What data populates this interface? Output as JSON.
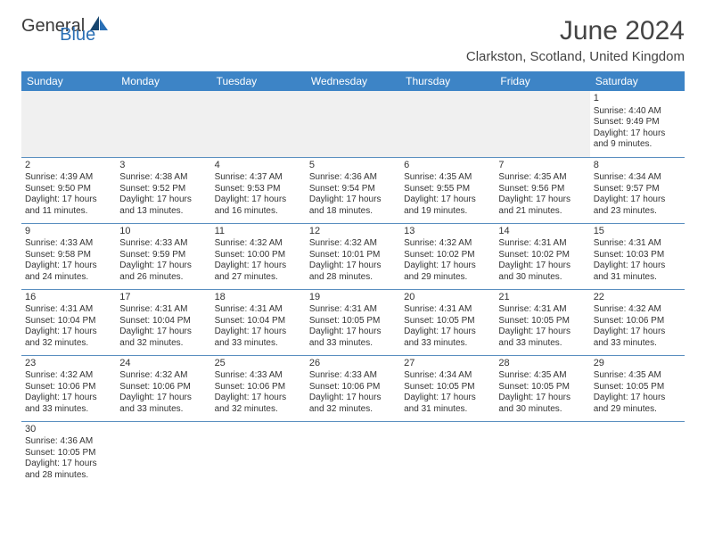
{
  "logo": {
    "text_main": "General",
    "text_sub": "Blue"
  },
  "header": {
    "title": "June 2024",
    "location": "Clarkston, Scotland, United Kingdom"
  },
  "colors": {
    "header_bg": "#3d84c6",
    "header_text": "#ffffff",
    "cell_border": "#5a8fc0",
    "empty_bg": "#f0f0f0",
    "text": "#333333",
    "logo_blue": "#2a6fb5"
  },
  "calendar": {
    "day_names": [
      "Sunday",
      "Monday",
      "Tuesday",
      "Wednesday",
      "Thursday",
      "Friday",
      "Saturday"
    ],
    "weeks": [
      [
        null,
        null,
        null,
        null,
        null,
        null,
        {
          "n": "1",
          "sr": "Sunrise: 4:40 AM",
          "ss": "Sunset: 9:49 PM",
          "d1": "Daylight: 17 hours",
          "d2": "and 9 minutes."
        }
      ],
      [
        {
          "n": "2",
          "sr": "Sunrise: 4:39 AM",
          "ss": "Sunset: 9:50 PM",
          "d1": "Daylight: 17 hours",
          "d2": "and 11 minutes."
        },
        {
          "n": "3",
          "sr": "Sunrise: 4:38 AM",
          "ss": "Sunset: 9:52 PM",
          "d1": "Daylight: 17 hours",
          "d2": "and 13 minutes."
        },
        {
          "n": "4",
          "sr": "Sunrise: 4:37 AM",
          "ss": "Sunset: 9:53 PM",
          "d1": "Daylight: 17 hours",
          "d2": "and 16 minutes."
        },
        {
          "n": "5",
          "sr": "Sunrise: 4:36 AM",
          "ss": "Sunset: 9:54 PM",
          "d1": "Daylight: 17 hours",
          "d2": "and 18 minutes."
        },
        {
          "n": "6",
          "sr": "Sunrise: 4:35 AM",
          "ss": "Sunset: 9:55 PM",
          "d1": "Daylight: 17 hours",
          "d2": "and 19 minutes."
        },
        {
          "n": "7",
          "sr": "Sunrise: 4:35 AM",
          "ss": "Sunset: 9:56 PM",
          "d1": "Daylight: 17 hours",
          "d2": "and 21 minutes."
        },
        {
          "n": "8",
          "sr": "Sunrise: 4:34 AM",
          "ss": "Sunset: 9:57 PM",
          "d1": "Daylight: 17 hours",
          "d2": "and 23 minutes."
        }
      ],
      [
        {
          "n": "9",
          "sr": "Sunrise: 4:33 AM",
          "ss": "Sunset: 9:58 PM",
          "d1": "Daylight: 17 hours",
          "d2": "and 24 minutes."
        },
        {
          "n": "10",
          "sr": "Sunrise: 4:33 AM",
          "ss": "Sunset: 9:59 PM",
          "d1": "Daylight: 17 hours",
          "d2": "and 26 minutes."
        },
        {
          "n": "11",
          "sr": "Sunrise: 4:32 AM",
          "ss": "Sunset: 10:00 PM",
          "d1": "Daylight: 17 hours",
          "d2": "and 27 minutes."
        },
        {
          "n": "12",
          "sr": "Sunrise: 4:32 AM",
          "ss": "Sunset: 10:01 PM",
          "d1": "Daylight: 17 hours",
          "d2": "and 28 minutes."
        },
        {
          "n": "13",
          "sr": "Sunrise: 4:32 AM",
          "ss": "Sunset: 10:02 PM",
          "d1": "Daylight: 17 hours",
          "d2": "and 29 minutes."
        },
        {
          "n": "14",
          "sr": "Sunrise: 4:31 AM",
          "ss": "Sunset: 10:02 PM",
          "d1": "Daylight: 17 hours",
          "d2": "and 30 minutes."
        },
        {
          "n": "15",
          "sr": "Sunrise: 4:31 AM",
          "ss": "Sunset: 10:03 PM",
          "d1": "Daylight: 17 hours",
          "d2": "and 31 minutes."
        }
      ],
      [
        {
          "n": "16",
          "sr": "Sunrise: 4:31 AM",
          "ss": "Sunset: 10:04 PM",
          "d1": "Daylight: 17 hours",
          "d2": "and 32 minutes."
        },
        {
          "n": "17",
          "sr": "Sunrise: 4:31 AM",
          "ss": "Sunset: 10:04 PM",
          "d1": "Daylight: 17 hours",
          "d2": "and 32 minutes."
        },
        {
          "n": "18",
          "sr": "Sunrise: 4:31 AM",
          "ss": "Sunset: 10:04 PM",
          "d1": "Daylight: 17 hours",
          "d2": "and 33 minutes."
        },
        {
          "n": "19",
          "sr": "Sunrise: 4:31 AM",
          "ss": "Sunset: 10:05 PM",
          "d1": "Daylight: 17 hours",
          "d2": "and 33 minutes."
        },
        {
          "n": "20",
          "sr": "Sunrise: 4:31 AM",
          "ss": "Sunset: 10:05 PM",
          "d1": "Daylight: 17 hours",
          "d2": "and 33 minutes."
        },
        {
          "n": "21",
          "sr": "Sunrise: 4:31 AM",
          "ss": "Sunset: 10:05 PM",
          "d1": "Daylight: 17 hours",
          "d2": "and 33 minutes."
        },
        {
          "n": "22",
          "sr": "Sunrise: 4:32 AM",
          "ss": "Sunset: 10:06 PM",
          "d1": "Daylight: 17 hours",
          "d2": "and 33 minutes."
        }
      ],
      [
        {
          "n": "23",
          "sr": "Sunrise: 4:32 AM",
          "ss": "Sunset: 10:06 PM",
          "d1": "Daylight: 17 hours",
          "d2": "and 33 minutes."
        },
        {
          "n": "24",
          "sr": "Sunrise: 4:32 AM",
          "ss": "Sunset: 10:06 PM",
          "d1": "Daylight: 17 hours",
          "d2": "and 33 minutes."
        },
        {
          "n": "25",
          "sr": "Sunrise: 4:33 AM",
          "ss": "Sunset: 10:06 PM",
          "d1": "Daylight: 17 hours",
          "d2": "and 32 minutes."
        },
        {
          "n": "26",
          "sr": "Sunrise: 4:33 AM",
          "ss": "Sunset: 10:06 PM",
          "d1": "Daylight: 17 hours",
          "d2": "and 32 minutes."
        },
        {
          "n": "27",
          "sr": "Sunrise: 4:34 AM",
          "ss": "Sunset: 10:05 PM",
          "d1": "Daylight: 17 hours",
          "d2": "and 31 minutes."
        },
        {
          "n": "28",
          "sr": "Sunrise: 4:35 AM",
          "ss": "Sunset: 10:05 PM",
          "d1": "Daylight: 17 hours",
          "d2": "and 30 minutes."
        },
        {
          "n": "29",
          "sr": "Sunrise: 4:35 AM",
          "ss": "Sunset: 10:05 PM",
          "d1": "Daylight: 17 hours",
          "d2": "and 29 minutes."
        }
      ],
      [
        {
          "n": "30",
          "sr": "Sunrise: 4:36 AM",
          "ss": "Sunset: 10:05 PM",
          "d1": "Daylight: 17 hours",
          "d2": "and 28 minutes."
        },
        null,
        null,
        null,
        null,
        null,
        null
      ]
    ]
  }
}
